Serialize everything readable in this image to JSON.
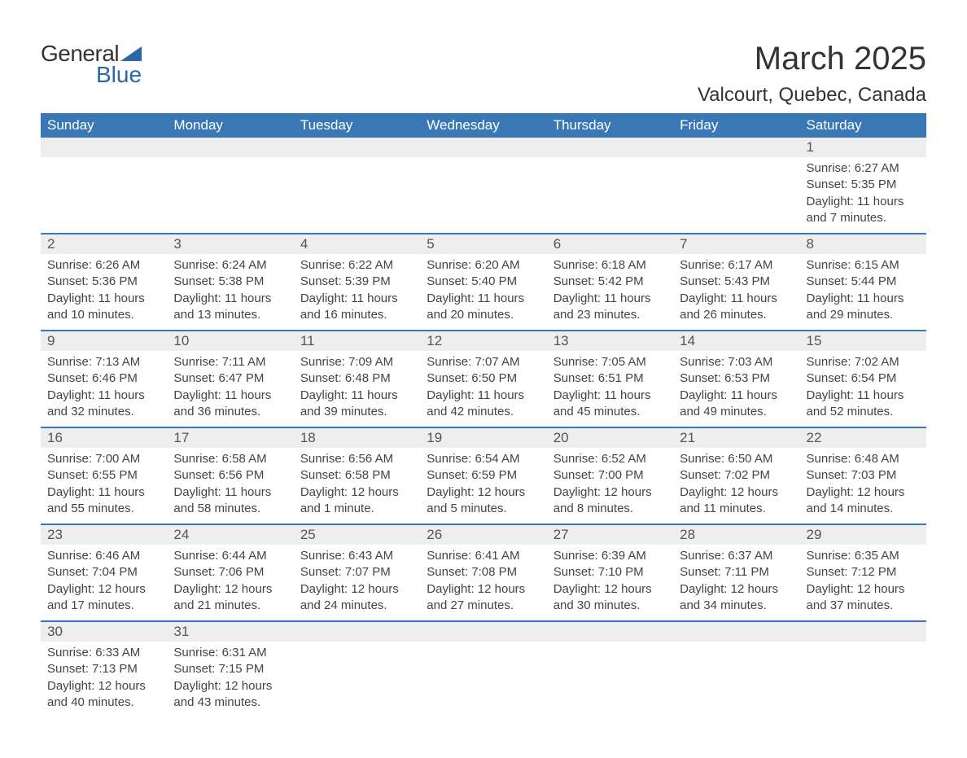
{
  "logo": {
    "text_general": "General",
    "text_blue": "Blue",
    "accent_color": "#2968a8"
  },
  "title": "March 2025",
  "location": "Valcourt, Quebec, Canada",
  "header_bg": "#3a78b5",
  "daynum_bg": "#eeeeee",
  "text_color": "#444444",
  "columns": [
    "Sunday",
    "Monday",
    "Tuesday",
    "Wednesday",
    "Thursday",
    "Friday",
    "Saturday"
  ],
  "weeks": [
    [
      null,
      null,
      null,
      null,
      null,
      null,
      {
        "n": "1",
        "sunrise": "6:27 AM",
        "sunset": "5:35 PM",
        "daylight": "11 hours and 7 minutes."
      }
    ],
    [
      {
        "n": "2",
        "sunrise": "6:26 AM",
        "sunset": "5:36 PM",
        "daylight": "11 hours and 10 minutes."
      },
      {
        "n": "3",
        "sunrise": "6:24 AM",
        "sunset": "5:38 PM",
        "daylight": "11 hours and 13 minutes."
      },
      {
        "n": "4",
        "sunrise": "6:22 AM",
        "sunset": "5:39 PM",
        "daylight": "11 hours and 16 minutes."
      },
      {
        "n": "5",
        "sunrise": "6:20 AM",
        "sunset": "5:40 PM",
        "daylight": "11 hours and 20 minutes."
      },
      {
        "n": "6",
        "sunrise": "6:18 AM",
        "sunset": "5:42 PM",
        "daylight": "11 hours and 23 minutes."
      },
      {
        "n": "7",
        "sunrise": "6:17 AM",
        "sunset": "5:43 PM",
        "daylight": "11 hours and 26 minutes."
      },
      {
        "n": "8",
        "sunrise": "6:15 AM",
        "sunset": "5:44 PM",
        "daylight": "11 hours and 29 minutes."
      }
    ],
    [
      {
        "n": "9",
        "sunrise": "7:13 AM",
        "sunset": "6:46 PM",
        "daylight": "11 hours and 32 minutes."
      },
      {
        "n": "10",
        "sunrise": "7:11 AM",
        "sunset": "6:47 PM",
        "daylight": "11 hours and 36 minutes."
      },
      {
        "n": "11",
        "sunrise": "7:09 AM",
        "sunset": "6:48 PM",
        "daylight": "11 hours and 39 minutes."
      },
      {
        "n": "12",
        "sunrise": "7:07 AM",
        "sunset": "6:50 PM",
        "daylight": "11 hours and 42 minutes."
      },
      {
        "n": "13",
        "sunrise": "7:05 AM",
        "sunset": "6:51 PM",
        "daylight": "11 hours and 45 minutes."
      },
      {
        "n": "14",
        "sunrise": "7:03 AM",
        "sunset": "6:53 PM",
        "daylight": "11 hours and 49 minutes."
      },
      {
        "n": "15",
        "sunrise": "7:02 AM",
        "sunset": "6:54 PM",
        "daylight": "11 hours and 52 minutes."
      }
    ],
    [
      {
        "n": "16",
        "sunrise": "7:00 AM",
        "sunset": "6:55 PM",
        "daylight": "11 hours and 55 minutes."
      },
      {
        "n": "17",
        "sunrise": "6:58 AM",
        "sunset": "6:56 PM",
        "daylight": "11 hours and 58 minutes."
      },
      {
        "n": "18",
        "sunrise": "6:56 AM",
        "sunset": "6:58 PM",
        "daylight": "12 hours and 1 minute."
      },
      {
        "n": "19",
        "sunrise": "6:54 AM",
        "sunset": "6:59 PM",
        "daylight": "12 hours and 5 minutes."
      },
      {
        "n": "20",
        "sunrise": "6:52 AM",
        "sunset": "7:00 PM",
        "daylight": "12 hours and 8 minutes."
      },
      {
        "n": "21",
        "sunrise": "6:50 AM",
        "sunset": "7:02 PM",
        "daylight": "12 hours and 11 minutes."
      },
      {
        "n": "22",
        "sunrise": "6:48 AM",
        "sunset": "7:03 PM",
        "daylight": "12 hours and 14 minutes."
      }
    ],
    [
      {
        "n": "23",
        "sunrise": "6:46 AM",
        "sunset": "7:04 PM",
        "daylight": "12 hours and 17 minutes."
      },
      {
        "n": "24",
        "sunrise": "6:44 AM",
        "sunset": "7:06 PM",
        "daylight": "12 hours and 21 minutes."
      },
      {
        "n": "25",
        "sunrise": "6:43 AM",
        "sunset": "7:07 PM",
        "daylight": "12 hours and 24 minutes."
      },
      {
        "n": "26",
        "sunrise": "6:41 AM",
        "sunset": "7:08 PM",
        "daylight": "12 hours and 27 minutes."
      },
      {
        "n": "27",
        "sunrise": "6:39 AM",
        "sunset": "7:10 PM",
        "daylight": "12 hours and 30 minutes."
      },
      {
        "n": "28",
        "sunrise": "6:37 AM",
        "sunset": "7:11 PM",
        "daylight": "12 hours and 34 minutes."
      },
      {
        "n": "29",
        "sunrise": "6:35 AM",
        "sunset": "7:12 PM",
        "daylight": "12 hours and 37 minutes."
      }
    ],
    [
      {
        "n": "30",
        "sunrise": "6:33 AM",
        "sunset": "7:13 PM",
        "daylight": "12 hours and 40 minutes."
      },
      {
        "n": "31",
        "sunrise": "6:31 AM",
        "sunset": "7:15 PM",
        "daylight": "12 hours and 43 minutes."
      },
      null,
      null,
      null,
      null,
      null
    ]
  ],
  "labels": {
    "sunrise": "Sunrise: ",
    "sunset": "Sunset: ",
    "daylight": "Daylight: "
  }
}
